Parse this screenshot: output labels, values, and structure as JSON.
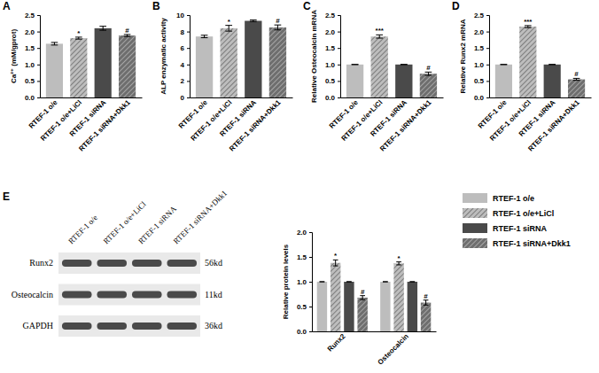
{
  "chart_data": [
    {
      "type": "bar",
      "title": "A",
      "y_label": "Ca²⁺ (mM/gprot)",
      "categories": [
        "RTEF-1 o/e",
        "RTEF-1 o/e+LiCl",
        "RTEF-1 siRNA",
        "RTEF-1 siRNA+Dkk1"
      ],
      "values": [
        1.63,
        1.8,
        2.1,
        1.88
      ],
      "errors": [
        0.04,
        0.03,
        0.06,
        0.03
      ],
      "annotations": [
        null,
        "*",
        null,
        "#"
      ],
      "colors": [
        "#bdbdbd",
        "#bdbdbd",
        "#4a4a4a",
        "#6e6e6e"
      ],
      "ylim": [
        0,
        2.5
      ],
      "yticks": [
        {
          "value": 0,
          "label": "0.0"
        },
        0.5,
        {
          "value": 1,
          "label": "1.0"
        },
        1.5,
        {
          "value": 2,
          "label": "2.0"
        },
        2.5
      ]
    },
    {
      "type": "bar",
      "title": "B",
      "y_label": "ALP enzymatic activity",
      "categories": [
        "RTEF-1 o/e",
        "RTEF-1 o/e+LiCl",
        "RTEF-1 siRNA",
        "RTEF-1 siRNA+Dkk1"
      ],
      "values": [
        7.4,
        8.4,
        9.3,
        8.5
      ],
      "errors": [
        0.15,
        0.35,
        0.1,
        0.3
      ],
      "annotations": [
        null,
        "*",
        null,
        "#"
      ],
      "colors": [
        "#bdbdbd",
        "#bdbdbd",
        "#4a4a4a",
        "#6e6e6e"
      ],
      "ylim": [
        0,
        10
      ],
      "yticks": [
        0,
        2,
        4,
        6,
        8,
        10
      ]
    },
    {
      "type": "bar",
      "title": "C",
      "y_label": "Relative Osteocalcin mRNA",
      "categories": [
        "RTEF-1 o/e",
        "RTEF-1 o/e+LiCl",
        "RTEF-1 siRNA",
        "RTEF-1 siRNA+Dkk1"
      ],
      "values": [
        1,
        1.85,
        1,
        0.72
      ],
      "errors": [
        0,
        0.05,
        0,
        0.05
      ],
      "annotations": [
        null,
        "***",
        null,
        "#"
      ],
      "colors": [
        "#bdbdbd",
        "#bdbdbd",
        "#4a4a4a",
        "#6e6e6e"
      ],
      "ylim": [
        0,
        2.5
      ],
      "yticks": [
        {
          "value": 0,
          "label": "0.0"
        },
        0.5,
        {
          "value": 1,
          "label": "1.0"
        },
        1.5,
        {
          "value": 2,
          "label": "2.0"
        },
        2.5
      ]
    },
    {
      "type": "bar",
      "title": "D",
      "y_label": "Relative Runx2 mRNA",
      "categories": [
        "RTEF-1 o/e",
        "RTEF-1 o/e+LiCl",
        "RTEF-1 siRNA",
        "RTEF-1 siRNA+Dkk1"
      ],
      "values": [
        1,
        2.15,
        1,
        0.55
      ],
      "errors": [
        0,
        0.03,
        0,
        0.03
      ],
      "annotations": [
        null,
        "***",
        null,
        "#"
      ],
      "colors": [
        "#bdbdbd",
        "#bdbdbd",
        "#4a4a4a",
        "#6e6e6e"
      ],
      "ylim": [
        0,
        2.5
      ],
      "yticks": [
        {
          "value": 0,
          "label": "0.0"
        },
        0.5,
        {
          "value": 1,
          "label": "1.0"
        },
        1.5,
        {
          "value": 2,
          "label": "2.0"
        },
        2.5
      ]
    },
    {
      "type": "bar",
      "title": "E",
      "y_label": "Relative protein levels",
      "categories": [
        "Runx2",
        "Osteocalcin"
      ],
      "series": [
        {
          "name": "RTEF-1 o/e",
          "color": "#bdbdbd",
          "values": [
            1,
            1
          ],
          "errors": [
            0,
            0
          ]
        },
        {
          "name": "RTEF-1 o/e+LiCl",
          "color": "#bdbdbd",
          "values": [
            1.38,
            1.37
          ],
          "errors": [
            0.06,
            0.03
          ],
          "annotations": [
            "*",
            "*"
          ]
        },
        {
          "name": "RTEF-1 siRNA",
          "color": "#4a4a4a",
          "values": [
            1,
            1
          ],
          "errors": [
            0,
            0
          ]
        },
        {
          "name": "RTEF-1 siRNA+Dkk1",
          "color": "#6e6e6e",
          "values": [
            0.68,
            0.58
          ],
          "errors": [
            0.04,
            0.05
          ],
          "annotations": [
            "#",
            "#"
          ]
        }
      ],
      "legend": "right",
      "ylim": [
        0,
        2
      ],
      "yticks": [
        {
          "value": 0,
          "label": "0.0"
        },
        0.5,
        {
          "value": 1,
          "label": "1.0"
        },
        1.5,
        {
          "value": 2,
          "label": "2.0"
        }
      ]
    }
  ],
  "blot": {
    "lanes": [
      "RTEF-1 o/e",
      "RTEF-1 o/e+LiCl",
      "RTEF-1 siRNA",
      "RTEF-1 siRNA+Dkk1"
    ],
    "rows": [
      {
        "label": "Runx2",
        "size": "56kd"
      },
      {
        "label": "Osteocalcin",
        "size": "11kd"
      },
      {
        "label": "GAPDH",
        "size": "36kd"
      }
    ]
  }
}
